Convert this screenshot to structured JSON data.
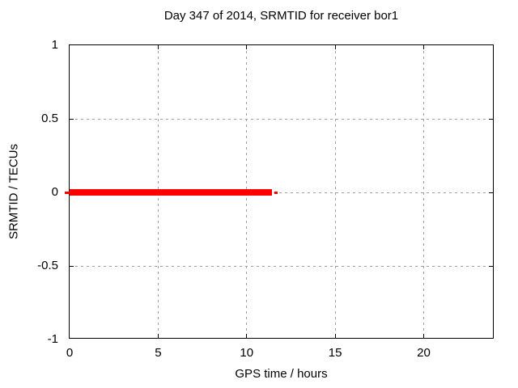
{
  "chart_data": {
    "type": "line",
    "title": "Day 347 of 2014, SRMTID for receiver bor1",
    "xlabel": "GPS time / hours",
    "ylabel": "SRMTID / TECUs",
    "xlim": [
      0,
      24
    ],
    "ylim": [
      -1,
      1
    ],
    "grid": true,
    "grid_style": "dotted gray",
    "legend": "none",
    "x_ticks": [
      {
        "value": 0,
        "label": "0"
      },
      {
        "value": 5,
        "label": "5"
      },
      {
        "value": 10,
        "label": "10"
      },
      {
        "value": 15,
        "label": "15"
      },
      {
        "value": 20,
        "label": "20"
      }
    ],
    "y_ticks": [
      {
        "value": 1,
        "label": "1"
      },
      {
        "value": 0.5,
        "label": "0.5"
      },
      {
        "value": 0,
        "label": "0"
      },
      {
        "value": -0.5,
        "label": "-0.5"
      },
      {
        "value": -1,
        "label": "-1"
      }
    ],
    "series": [
      {
        "name": "SRMTID",
        "color": "#ff0000",
        "description": "SRMTID values approximately 0 TECUs from hour 0 to about hour 11.7; no data afterwards",
        "segments": [
          {
            "x1": -0.27,
            "x2": 0,
            "y": 0,
            "weight": "thin"
          },
          {
            "x1": 0,
            "x2": 11.43,
            "y": 0,
            "weight": "thick"
          },
          {
            "x1": 11.57,
            "x2": 11.73,
            "y": 0,
            "weight": "thin"
          }
        ]
      }
    ],
    "colors": {
      "background": "#ffffff",
      "border": "#000000",
      "text": "#000000",
      "grid": "#9e9e9e",
      "series_red": "#ff0000"
    }
  }
}
